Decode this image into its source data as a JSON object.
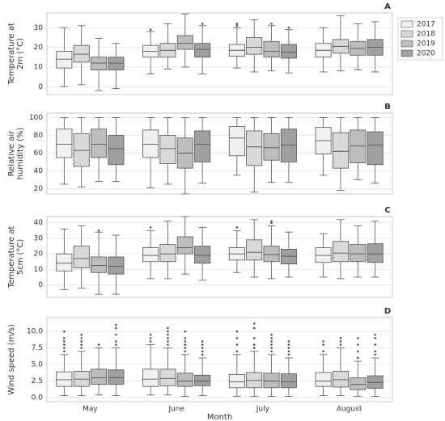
{
  "chart_data": [
    {
      "type": "box",
      "title": "A",
      "ylabel": [
        "Temperature at",
        "2m (°C)"
      ],
      "ylim": [
        -4,
        37.5
      ],
      "yticks": [
        0,
        10,
        20,
        30
      ],
      "series": [
        {
          "name": "2017",
          "color": "#f0f0f0",
          "values": [
            {
              "whislo": 0,
              "q1": 9.5,
              "med": 14,
              "q3": 18,
              "whishi": 30,
              "fliers": []
            },
            {
              "whislo": 6.5,
              "q1": 15,
              "med": 18,
              "q3": 21,
              "whishi": 28,
              "fliers": [
                29
              ]
            },
            {
              "whislo": 9.5,
              "q1": 15.5,
              "med": 18.5,
              "q3": 21.5,
              "whishi": 30,
              "fliers": [
                31,
                32
              ]
            },
            {
              "whislo": 7.5,
              "q1": 15,
              "med": 18.5,
              "q3": 22,
              "whishi": 30,
              "fliers": []
            }
          ]
        },
        {
          "name": "2018",
          "color": "#d9d9d9",
          "values": [
            {
              "whislo": 1,
              "q1": 12.5,
              "med": 16.5,
              "q3": 21,
              "whishi": 31,
              "fliers": []
            },
            {
              "whislo": 9,
              "q1": 15,
              "med": 18.5,
              "q3": 22,
              "whishi": 32,
              "fliers": []
            },
            {
              "whislo": 7.5,
              "q1": 16.5,
              "med": 20,
              "q3": 25,
              "whishi": 34,
              "fliers": []
            },
            {
              "whislo": 8,
              "q1": 17,
              "med": 20.5,
              "q3": 24,
              "whishi": 36,
              "fliers": []
            }
          ]
        },
        {
          "name": "2019",
          "color": "#bdbdbd",
          "values": [
            {
              "whislo": -2,
              "q1": 8.5,
              "med": 12,
              "q3": 15,
              "whishi": 24.5,
              "fliers": []
            },
            {
              "whislo": 10,
              "q1": 19,
              "med": 22,
              "q3": 26,
              "whishi": 37,
              "fliers": []
            },
            {
              "whislo": 8,
              "q1": 15,
              "med": 18,
              "q3": 23,
              "whishi": 31,
              "fliers": [
                32
              ]
            },
            {
              "whislo": 8.5,
              "q1": 16,
              "med": 19.5,
              "q3": 23,
              "whishi": 32,
              "fliers": []
            }
          ]
        },
        {
          "name": "2020",
          "color": "#a0a0a0",
          "values": [
            {
              "whislo": -1,
              "q1": 8.5,
              "med": 12,
              "q3": 15,
              "whishi": 22,
              "fliers": []
            },
            {
              "whislo": 6.5,
              "q1": 15,
              "med": 19,
              "q3": 22,
              "whishi": 31,
              "fliers": [
                32
              ]
            },
            {
              "whislo": 7,
              "q1": 14.5,
              "med": 17.5,
              "q3": 21.5,
              "whishi": 29,
              "fliers": [
                30
              ]
            },
            {
              "whislo": 7.5,
              "q1": 16,
              "med": 20,
              "q3": 24,
              "whishi": 33,
              "fliers": []
            }
          ]
        }
      ]
    },
    {
      "type": "box",
      "title": "B",
      "ylabel": [
        "Relative air",
        "humidity (%)"
      ],
      "ylim": [
        14,
        105
      ],
      "yticks": [
        20,
        40,
        60,
        80,
        100
      ],
      "series": [
        {
          "color": "#f0f0f0",
          "values": [
            {
              "whislo": 25,
              "q1": 55,
              "med": 70,
              "q3": 87,
              "whishi": 100,
              "fliers": []
            },
            {
              "whislo": 21,
              "q1": 55,
              "med": 70,
              "q3": 86,
              "whishi": 100,
              "fliers": []
            },
            {
              "whislo": 35,
              "q1": 57,
              "med": 77,
              "q3": 90,
              "whishi": 100,
              "fliers": []
            },
            {
              "whislo": 35,
              "q1": 59,
              "med": 74,
              "q3": 89,
              "whishi": 100,
              "fliers": []
            }
          ]
        },
        {
          "color": "#d9d9d9",
          "values": [
            {
              "whislo": 22,
              "q1": 45,
              "med": 63,
              "q3": 82,
              "whishi": 100,
              "fliers": []
            },
            {
              "whislo": 25,
              "q1": 48,
              "med": 65,
              "q3": 80,
              "whishi": 100,
              "fliers": []
            },
            {
              "whislo": 16,
              "q1": 46,
              "med": 67,
              "q3": 85,
              "whishi": 100,
              "fliers": []
            },
            {
              "whislo": 18,
              "q1": 43,
              "med": 62,
              "q3": 83,
              "whishi": 100,
              "fliers": []
            }
          ]
        },
        {
          "color": "#bdbdbd",
          "values": [
            {
              "whislo": 28,
              "q1": 55,
              "med": 70,
              "q3": 87,
              "whishi": 100,
              "fliers": []
            },
            {
              "whislo": 14,
              "q1": 43,
              "med": 60,
              "q3": 77,
              "whishi": 100,
              "fliers": []
            },
            {
              "whislo": 27,
              "q1": 52,
              "med": 66,
              "q3": 82,
              "whishi": 100,
              "fliers": []
            },
            {
              "whislo": 30,
              "q1": 49,
              "med": 68,
              "q3": 86,
              "whishi": 100,
              "fliers": []
            }
          ]
        },
        {
          "color": "#a0a0a0",
          "values": [
            {
              "whislo": 28,
              "q1": 47,
              "med": 65,
              "q3": 80,
              "whishi": 100,
              "fliers": []
            },
            {
              "whislo": 26,
              "q1": 50,
              "med": 70,
              "q3": 85,
              "whishi": 100,
              "fliers": []
            },
            {
              "whislo": 27,
              "q1": 50,
              "med": 69,
              "q3": 87,
              "whishi": 100,
              "fliers": []
            },
            {
              "whislo": 26,
              "q1": 47,
              "med": 69,
              "q3": 84,
              "whishi": 100,
              "fliers": []
            }
          ]
        }
      ]
    },
    {
      "type": "box",
      "title": "C",
      "ylabel": [
        "Temperature at",
        "5cm (°C)"
      ],
      "ylim": [
        -8,
        44
      ],
      "yticks": [
        0,
        10,
        20,
        30,
        40
      ],
      "series": [
        {
          "color": "#f0f0f0",
          "values": [
            {
              "whislo": -3,
              "q1": 9,
              "med": 14,
              "q3": 20,
              "whishi": 36,
              "fliers": []
            },
            {
              "whislo": 4,
              "q1": 15,
              "med": 19,
              "q3": 24,
              "whishi": 35,
              "fliers": [
                37
              ]
            },
            {
              "whislo": 8,
              "q1": 16,
              "med": 20,
              "q3": 24,
              "whishi": 35,
              "fliers": [
                37
              ]
            },
            {
              "whislo": 5,
              "q1": 14.5,
              "med": 19,
              "q3": 24,
              "whishi": 33,
              "fliers": []
            }
          ]
        },
        {
          "color": "#d9d9d9",
          "values": [
            {
              "whislo": -2,
              "q1": 11,
              "med": 17,
              "q3": 25,
              "whishi": 38,
              "fliers": []
            },
            {
              "whislo": 4,
              "q1": 15,
              "med": 20,
              "q3": 26,
              "whishi": 41,
              "fliers": []
            },
            {
              "whislo": 5,
              "q1": 16,
              "med": 21,
              "q3": 29,
              "whishi": 42,
              "fliers": []
            },
            {
              "whislo": 4,
              "q1": 15,
              "med": 20.5,
              "q3": 28,
              "whishi": 42,
              "fliers": []
            }
          ]
        },
        {
          "color": "#bdbdbd",
          "values": [
            {
              "whislo": -6,
              "q1": 8,
              "med": 12.5,
              "q3": 18,
              "whishi": 34,
              "fliers": [
                35
              ]
            },
            {
              "whislo": 7,
              "q1": 20,
              "med": 24,
              "q3": 31,
              "whishi": 44,
              "fliers": []
            },
            {
              "whislo": 4,
              "q1": 15,
              "med": 19.5,
              "q3": 25,
              "whishi": 38,
              "fliers": [
                40,
                41
              ]
            },
            {
              "whislo": 5,
              "q1": 15,
              "med": 20,
              "q3": 26,
              "whishi": 38,
              "fliers": []
            }
          ]
        },
        {
          "color": "#a0a0a0",
          "values": [
            {
              "whislo": -6,
              "q1": 7,
              "med": 12,
              "q3": 18,
              "whishi": 32,
              "fliers": []
            },
            {
              "whislo": 3,
              "q1": 14,
              "med": 19,
              "q3": 25,
              "whishi": 37,
              "fliers": []
            },
            {
              "whislo": 5,
              "q1": 13.5,
              "med": 18.5,
              "q3": 23,
              "whishi": 34,
              "fliers": []
            },
            {
              "whislo": 5,
              "q1": 14.5,
              "med": 20,
              "q3": 26.5,
              "whishi": 41,
              "fliers": []
            }
          ]
        }
      ]
    },
    {
      "type": "box",
      "title": "D",
      "ylabel": [
        "Wind speed (m/s)"
      ],
      "xlabel": "Month",
      "categories": [
        "May",
        "June",
        "July",
        "August"
      ],
      "ylim": [
        -0.6,
        12.1
      ],
      "yticks": [
        {
          "value": 0,
          "label": "0.0"
        },
        {
          "value": 2.5,
          "label": "2.5"
        },
        {
          "value": 5,
          "label": "5.0"
        },
        {
          "value": 7.5,
          "label": "7.5"
        },
        {
          "value": 10,
          "label": "10.0"
        }
      ],
      "series": [
        {
          "color": "#f0f0f0",
          "values": [
            {
              "whislo": 0.3,
              "q1": 1.7,
              "med": 2.7,
              "q3": 3.9,
              "whishi": 6.5,
              "fliers": [
                7,
                7.5,
                8,
                8.5,
                9,
                10
              ]
            },
            {
              "whislo": 0.4,
              "q1": 1.7,
              "med": 2.8,
              "q3": 4.3,
              "whishi": 8,
              "fliers": [
                8.5,
                9,
                9.5
              ]
            },
            {
              "whislo": 0.2,
              "q1": 1.5,
              "med": 2.4,
              "q3": 3.5,
              "whishi": 6.5,
              "fliers": [
                7,
                8,
                9,
                10
              ]
            },
            {
              "whislo": 0.3,
              "q1": 1.7,
              "med": 2.5,
              "q3": 3.8,
              "whishi": 6.5,
              "fliers": [
                7,
                8,
                8.5
              ]
            }
          ]
        },
        {
          "color": "#d9d9d9",
          "values": [
            {
              "whislo": 0.3,
              "q1": 1.7,
              "med": 2.8,
              "q3": 4,
              "whishi": 7,
              "fliers": [
                7.5,
                8,
                8.5,
                9,
                9.5
              ]
            },
            {
              "whislo": 0.4,
              "q1": 1.8,
              "med": 2.9,
              "q3": 4.3,
              "whishi": 7.5,
              "fliers": [
                8,
                8.5,
                9,
                9.5,
                10,
                10.5
              ]
            },
            {
              "whislo": 0.2,
              "q1": 1.5,
              "med": 2.6,
              "q3": 3.8,
              "whishi": 7,
              "fliers": [
                7.5,
                8,
                9,
                10.5,
                11.2
              ]
            },
            {
              "whislo": 0.3,
              "q1": 1.6,
              "med": 2.7,
              "q3": 4,
              "whishi": 7.5,
              "fliers": [
                8,
                8.5,
                9
              ]
            }
          ]
        },
        {
          "color": "#bdbdbd",
          "values": [
            {
              "whislo": 0.4,
              "q1": 2,
              "med": 3,
              "q3": 4.3,
              "whishi": 7.5,
              "fliers": [
                8
              ]
            },
            {
              "whislo": 0.2,
              "q1": 1.7,
              "med": 2.5,
              "q3": 3.7,
              "whishi": 6.5,
              "fliers": [
                7,
                7.5,
                8,
                8.5,
                9,
                10
              ]
            },
            {
              "whislo": 0.2,
              "q1": 1.5,
              "med": 2.5,
              "q3": 3.7,
              "whishi": 6.5,
              "fliers": [
                7,
                7.5,
                8,
                8.5,
                9,
                9.5
              ]
            },
            {
              "whislo": 0.2,
              "q1": 1.2,
              "med": 2,
              "q3": 3,
              "whishi": 5.5,
              "fliers": [
                6,
                7,
                8,
                9
              ]
            }
          ]
        },
        {
          "color": "#a0a0a0",
          "values": [
            {
              "whislo": 0.3,
              "q1": 2,
              "med": 3,
              "q3": 4.2,
              "whishi": 7.5,
              "fliers": [
                8,
                8.5,
                9.5,
                10.5,
                11
              ]
            },
            {
              "whislo": 0.3,
              "q1": 1.8,
              "med": 2.5,
              "q3": 3.4,
              "whishi": 6,
              "fliers": [
                6.5,
                7,
                7.5,
                8,
                8.5
              ]
            },
            {
              "whislo": 0.2,
              "q1": 1.5,
              "med": 2.4,
              "q3": 3.6,
              "whishi": 6,
              "fliers": [
                6.5,
                7,
                7.5,
                8,
                8.5
              ]
            },
            {
              "whislo": 0.2,
              "q1": 1.4,
              "med": 2.3,
              "q3": 3.3,
              "whishi": 6,
              "fliers": [
                6.5,
                7,
                8,
                9,
                9.5
              ]
            }
          ]
        }
      ]
    }
  ]
}
